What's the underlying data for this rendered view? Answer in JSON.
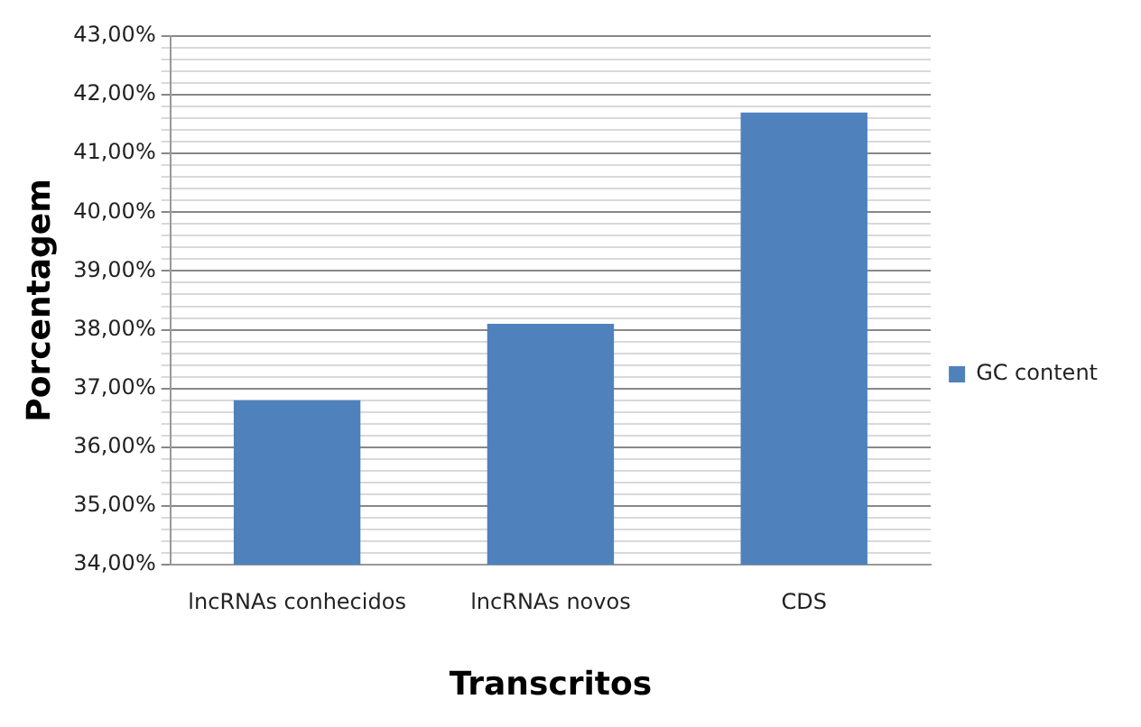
{
  "chart_data": {
    "type": "bar",
    "xlabel": "Transcritos",
    "ylabel": "Porcentagem",
    "categories": [
      "lncRNAs conhecidos",
      "lncRNAs novos",
      "CDS"
    ],
    "series": [
      {
        "name": "GC content",
        "color": "#4f81bd",
        "values": [
          36.8,
          38.1,
          41.7
        ]
      }
    ],
    "ylim": [
      34,
      43
    ],
    "yticks": [
      {
        "value": 34,
        "label": "34,00%"
      },
      {
        "value": 34.2,
        "label": null
      },
      {
        "value": 34.4,
        "label": null
      },
      {
        "value": 34.6,
        "label": null
      },
      {
        "value": 34.8,
        "label": null
      },
      {
        "value": 35,
        "label": "35,00%"
      },
      {
        "value": 35.2,
        "label": null
      },
      {
        "value": 35.4,
        "label": null
      },
      {
        "value": 35.6,
        "label": null
      },
      {
        "value": 35.8,
        "label": null
      },
      {
        "value": 36,
        "label": "36,00%"
      },
      {
        "value": 36.2,
        "label": null
      },
      {
        "value": 36.4,
        "label": null
      },
      {
        "value": 36.6,
        "label": null
      },
      {
        "value": 36.8,
        "label": null
      },
      {
        "value": 37,
        "label": "37,00%"
      },
      {
        "value": 37.2,
        "label": null
      },
      {
        "value": 37.4,
        "label": null
      },
      {
        "value": 37.6,
        "label": null
      },
      {
        "value": 37.8,
        "label": null
      },
      {
        "value": 38,
        "label": "38,00%"
      },
      {
        "value": 38.2,
        "label": null
      },
      {
        "value": 38.4,
        "label": null
      },
      {
        "value": 38.6,
        "label": null
      },
      {
        "value": 38.8,
        "label": null
      },
      {
        "value": 39,
        "label": "39,00%"
      },
      {
        "value": 39.2,
        "label": null
      },
      {
        "value": 39.4,
        "label": null
      },
      {
        "value": 39.6,
        "label": null
      },
      {
        "value": 39.8,
        "label": null
      },
      {
        "value": 40,
        "label": "40,00%"
      },
      {
        "value": 40.2,
        "label": null
      },
      {
        "value": 40.4,
        "label": null
      },
      {
        "value": 40.6,
        "label": null
      },
      {
        "value": 40.8,
        "label": null
      },
      {
        "value": 41,
        "label": "41,00%"
      },
      {
        "value": 41.2,
        "label": null
      },
      {
        "value": 41.4,
        "label": null
      },
      {
        "value": 41.6,
        "label": null
      },
      {
        "value": 41.8,
        "label": null
      },
      {
        "value": 42,
        "label": "42,00%"
      },
      {
        "value": 42.2,
        "label": null
      },
      {
        "value": 42.4,
        "label": null
      },
      {
        "value": 42.6,
        "label": null
      },
      {
        "value": 42.8,
        "label": null
      },
      {
        "value": 43,
        "label": "43,00%"
      }
    ],
    "grid": "y",
    "legend": "right"
  }
}
